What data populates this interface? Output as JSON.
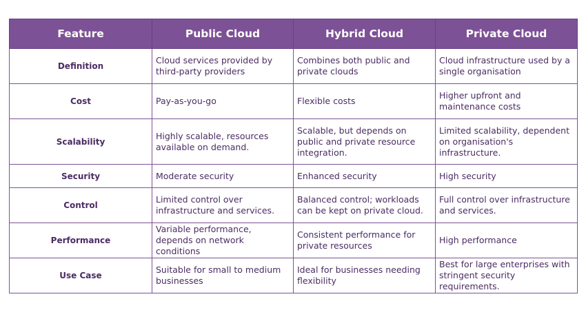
{
  "table": {
    "headers": [
      "Feature",
      "Public Cloud",
      "Hybrid Cloud",
      "Private Cloud"
    ],
    "rows": [
      {
        "feature": "Definition",
        "public": "Cloud services provided by third-party providers",
        "hybrid": "Combines both public and private clouds",
        "private": "Cloud infrastructure used by a single organisation"
      },
      {
        "feature": "Cost",
        "public": "Pay-as-you-go",
        "hybrid": "Flexible costs",
        "private": "Higher upfront and maintenance costs"
      },
      {
        "feature": "Scalability",
        "public": "Highly scalable, resources available on demand.",
        "hybrid": "Scalable, but depends on public and private resource integration.",
        "private": "Limited scalability, dependent on organisation's infrastructure."
      },
      {
        "feature": "Security",
        "public": "Moderate security",
        "hybrid": "Enhanced security",
        "private": "High security"
      },
      {
        "feature": "Control",
        "public": "Limited control over infrastructure and services.",
        "hybrid": "Balanced control; workloads can be kept on private cloud.",
        "private": "Full control over infrastructure and services."
      },
      {
        "feature": "Performance",
        "public": "Variable performance, depends on network conditions",
        "hybrid": "Consistent performance for private resources",
        "private": "High performance"
      },
      {
        "feature": "Use Case",
        "public": "Suitable for small to medium businesses",
        "hybrid": "Ideal for businesses needing flexibility",
        "private": "Best for large enterprises with stringent security requirements."
      }
    ]
  },
  "colors": {
    "header_bg": "#7d5196",
    "header_text": "#ffffff",
    "cell_text": "#4b2c63",
    "border": "#7d5196"
  }
}
